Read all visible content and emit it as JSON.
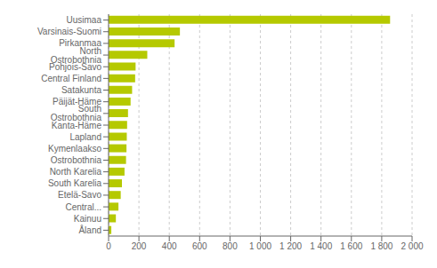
{
  "chart_data": {
    "type": "bar",
    "orientation": "horizontal",
    "categories": [
      "Åland",
      "Kainuu",
      "Central...",
      "Etelä-Savo",
      "South Karelia",
      "North Karelia",
      "Ostrobothnia",
      "Kymenlaakso",
      "Lapland",
      "Kanta-Häme",
      "South Ostrobothnia",
      "Päijät-Häme",
      "Satakunta",
      "Central Finland",
      "Pohjois-Savo",
      "North Ostrobothnia",
      "Pirkanmaa",
      "Varsinais-Suomi",
      "Uusimaa"
    ],
    "values": [
      18,
      48,
      65,
      80,
      88,
      105,
      115,
      118,
      120,
      122,
      128,
      145,
      155,
      175,
      178,
      255,
      435,
      470,
      1855
    ],
    "color": "#b5c900",
    "xlim": [
      0,
      2000
    ],
    "xticks": [
      0,
      200,
      400,
      600,
      800,
      {
        "value": 1000,
        "label": "1 000"
      },
      {
        "value": 1200,
        "label": "1 200"
      },
      {
        "value": 1400,
        "label": "1 400"
      },
      {
        "value": 1600,
        "label": "1 600"
      },
      {
        "value": 1800,
        "label": "1 800"
      },
      {
        "value": 2000,
        "label": "2 000"
      }
    ],
    "grid": true
  }
}
